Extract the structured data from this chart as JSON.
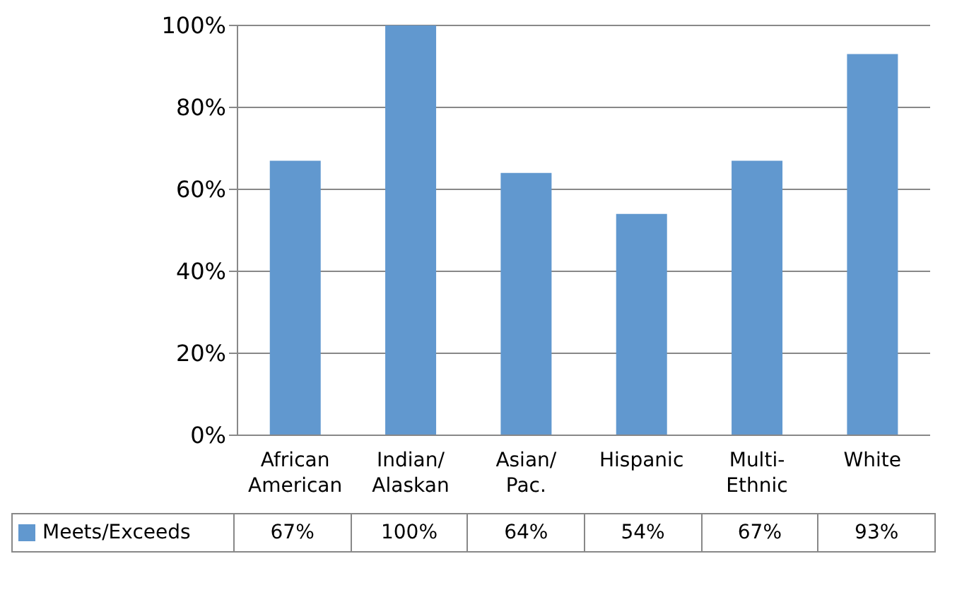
{
  "chart_data": {
    "type": "bar",
    "categories": [
      "African American",
      "Indian/Alaskan",
      "Asian/Pac.",
      "Hispanic",
      "Multi-Ethnic",
      "White"
    ],
    "series": [
      {
        "name": "Meets/Exceeds",
        "color": "#6198cf",
        "values": [
          67,
          100,
          64,
          54,
          67,
          93
        ],
        "value_labels": [
          "67%",
          "100%",
          "64%",
          "54%",
          "67%",
          "93%"
        ]
      }
    ],
    "ylim": [
      0,
      100
    ],
    "yticks": [
      {
        "value": 0,
        "label": "0%"
      },
      {
        "value": 20,
        "label": "20%"
      },
      {
        "value": 40,
        "label": "40%"
      },
      {
        "value": 60,
        "label": "60%"
      },
      {
        "value": 80,
        "label": "80%"
      },
      {
        "value": 100,
        "label": "100%"
      }
    ],
    "grid": "y",
    "legend": "bottom"
  }
}
